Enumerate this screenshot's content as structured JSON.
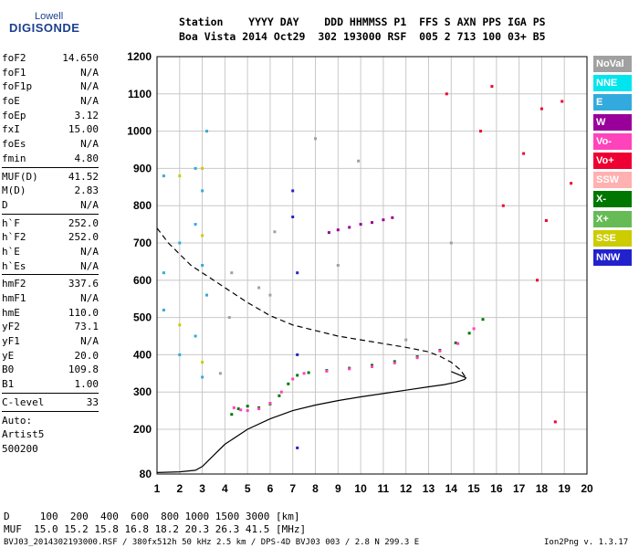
{
  "logo": {
    "top": "Lowell",
    "bottom": "DIGISONDE"
  },
  "header": {
    "line1": "Station    YYYY DAY    DDD HHMMSS P1  FFS S AXN PPS IGA PS",
    "line2": "Boa Vista 2014 Oct29  302 193000 RSF  005 2 713 100 03+ B5"
  },
  "params": [
    [
      [
        "foF2",
        "14.650"
      ],
      [
        "foF1",
        "N/A"
      ],
      [
        "foF1p",
        "N/A"
      ],
      [
        "foE",
        "N/A"
      ],
      [
        "foEp",
        "3.12"
      ],
      [
        "fxI",
        "15.00"
      ],
      [
        "foEs",
        "N/A"
      ],
      [
        "fmin",
        "4.80"
      ]
    ],
    [
      [
        "MUF(D)",
        "41.52"
      ],
      [
        "M(D)",
        "2.83"
      ],
      [
        "D",
        "N/A"
      ]
    ],
    [
      [
        "h`F",
        "252.0"
      ],
      [
        "h`F2",
        "252.0"
      ],
      [
        "h`E",
        "N/A"
      ],
      [
        "h`Es",
        "N/A"
      ]
    ],
    [
      [
        "hmF2",
        "337.6"
      ],
      [
        "hmF1",
        "N/A"
      ],
      [
        "hmE",
        "110.0"
      ],
      [
        "yF2",
        "73.1"
      ],
      [
        "yF1",
        "N/A"
      ],
      [
        "yE",
        "20.0"
      ],
      [
        "B0",
        "109.8"
      ],
      [
        "B1",
        "1.00"
      ]
    ],
    [
      [
        "C-level",
        "33"
      ]
    ],
    [
      [
        "Auto:",
        ""
      ],
      [
        "Artist5",
        ""
      ],
      [
        "500200",
        ""
      ]
    ]
  ],
  "bottom": {
    "d_line": "D     100  200  400  600  800 1000 1500 3000 [km]",
    "muf_line": "MUF  15.0 15.2 15.8 16.8 18.2 20.3 26.3 41.5 [MHz]",
    "footer_left": "BVJ03_2014302193000.RSF / 380fx512h 50 kHz 2.5 km / DPS-4D BVJ03 003 / 2.8 N 299.3 E",
    "footer_right": "Ion2Png v. 1.3.17"
  },
  "legend": [
    {
      "label": "NoVal",
      "color": "#a0a0a0"
    },
    {
      "label": "NNE",
      "color": "#00e5ee"
    },
    {
      "label": "E",
      "color": "#33aadd"
    },
    {
      "label": "W",
      "color": "#990099"
    },
    {
      "label": "Vo-",
      "color": "#ff44bb"
    },
    {
      "label": "Vo+",
      "color": "#ee0033"
    },
    {
      "label": "SSW",
      "color": "#ffb0b0"
    },
    {
      "label": "X-",
      "color": "#007700"
    },
    {
      "label": "X+",
      "color": "#66bb55"
    },
    {
      "label": "SSE",
      "color": "#cccc00"
    },
    {
      "label": "NNW",
      "color": "#2222cc"
    }
  ],
  "chart_data": {
    "type": "scatter",
    "xlim": [
      1,
      20
    ],
    "ylim": [
      80,
      1200
    ],
    "x_ticks": [
      1,
      2,
      3,
      4,
      5,
      6,
      7,
      8,
      9,
      10,
      11,
      12,
      13,
      14,
      15,
      16,
      17,
      18,
      19,
      20
    ],
    "y_ticks": [
      80,
      200,
      300,
      400,
      500,
      600,
      700,
      800,
      900,
      1000,
      1100,
      1200
    ],
    "grid": true,
    "series": [
      {
        "name": "X-",
        "color": "#007700",
        "x": [
          4.3,
          4.6,
          5.0,
          5.5,
          6.0,
          6.4,
          6.8,
          7.2,
          7.7,
          8.5,
          9.5,
          10.5,
          11.5,
          12.5,
          13.5,
          14.2,
          14.8,
          15.4
        ],
        "y": [
          240,
          255,
          262,
          258,
          268,
          290,
          322,
          345,
          352,
          358,
          364,
          372,
          382,
          395,
          412,
          432,
          458,
          495
        ]
      },
      {
        "name": "Vo-",
        "color": "#ff44bb",
        "x": [
          4.4,
          4.7,
          5.0,
          5.5,
          6.0,
          6.5,
          7.0,
          7.5,
          8.5,
          9.5,
          10.5,
          11.5,
          12.5,
          13.5,
          14.3,
          15.0
        ],
        "y": [
          258,
          252,
          250,
          255,
          270,
          300,
          335,
          350,
          356,
          362,
          368,
          378,
          392,
          410,
          430,
          470
        ]
      },
      {
        "name": "W",
        "color": "#990099",
        "x": [
          8.6,
          9.0,
          9.5,
          10.0,
          10.5,
          11.0,
          11.4
        ],
        "y": [
          728,
          735,
          742,
          750,
          755,
          762,
          768
        ]
      },
      {
        "name": "E",
        "color": "#33aadd",
        "x": [
          1.3,
          1.3,
          1.3,
          2.0,
          2.0,
          2.7,
          2.7,
          2.7,
          3.0,
          3.0,
          3.0,
          3.2,
          3.2
        ],
        "y": [
          880,
          620,
          520,
          700,
          400,
          900,
          750,
          450,
          840,
          640,
          340,
          1000,
          560
        ]
      },
      {
        "name": "SSE",
        "color": "#cccc00",
        "x": [
          2.0,
          2.0,
          3.0,
          3.0,
          3.0
        ],
        "y": [
          880,
          480,
          900,
          720,
          380
        ]
      },
      {
        "name": "NNW",
        "color": "#2222cc",
        "x": [
          7.0,
          7.0,
          7.2,
          7.2,
          7.2
        ],
        "y": [
          840,
          770,
          620,
          400,
          150
        ]
      },
      {
        "name": "Vo+",
        "color": "#ee0033",
        "x": [
          13.8,
          15.3,
          15.8,
          16.3,
          17.2,
          17.8,
          18.0,
          18.2,
          18.6,
          18.9,
          19.3
        ],
        "y": [
          1100,
          1000,
          1120,
          800,
          940,
          600,
          1060,
          760,
          220,
          1080,
          860
        ]
      },
      {
        "name": "NoVal",
        "color": "#a0a0a0",
        "x": [
          3.8,
          4.2,
          4.3,
          5.5,
          6.0,
          6.2,
          8.0,
          9.0,
          9.9,
          12.0,
          14.0
        ],
        "y": [
          350,
          500,
          620,
          580,
          560,
          730,
          980,
          640,
          920,
          440,
          700
        ]
      }
    ],
    "profiles": [
      {
        "style": "dashed",
        "x": [
          1.0,
          1.5,
          2.0,
          2.5,
          3.0,
          3.5,
          4.0,
          5.0,
          6.0,
          7.0,
          8.0,
          9.0,
          10.0,
          11.0,
          12.0,
          13.0,
          13.5,
          14.0,
          14.4,
          14.65
        ],
        "y": [
          740,
          700,
          670,
          640,
          620,
          600,
          580,
          540,
          505,
          480,
          465,
          450,
          440,
          430,
          420,
          408,
          396,
          380,
          360,
          338
        ]
      },
      {
        "style": "solid",
        "x": [
          1.0,
          2.0,
          2.7,
          3.0,
          3.5,
          4.0,
          5.0,
          6.0,
          7.0,
          8.0,
          9.0,
          10.0,
          11.0,
          12.0,
          13.0,
          13.7,
          14.2,
          14.6,
          14.65,
          14.4,
          14.0
        ],
        "y": [
          84,
          86,
          90,
          100,
          130,
          160,
          200,
          228,
          250,
          265,
          277,
          287,
          296,
          305,
          314,
          320,
          326,
          334,
          338,
          345,
          355
        ]
      }
    ]
  }
}
